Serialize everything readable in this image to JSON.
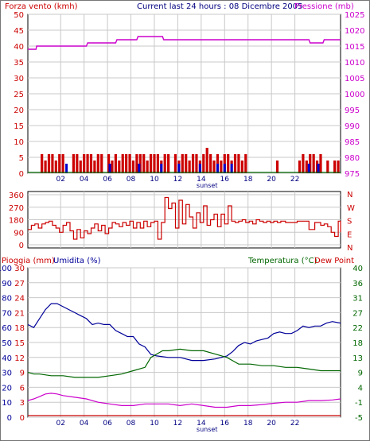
{
  "header": {
    "title": "Current last 24 hours : 08 Dicembre 2005"
  },
  "colors": {
    "background": "#ffffff",
    "wind": "#cc0000",
    "pressure": "#cc00cc",
    "gust_marks": "#0000cc",
    "humidity": "#000099",
    "temperature": "#006600",
    "dew_point": "#cc0000",
    "rain_baseline": "#cc0000",
    "grid": "#c8c8c8"
  },
  "chart_data": [
    {
      "type": "line",
      "panel": "wind-pressure",
      "title": "Current last 24 hours : 08 Dicembre 2005",
      "left_axis_label": "Forza vento (kmh)",
      "right_axis_label": "Pressione (mb)",
      "y_left_lim": [
        0,
        50
      ],
      "y_right_lim": [
        975,
        1025
      ],
      "y_left_ticks": [
        "0",
        "5",
        "10",
        "15",
        "20",
        "25",
        "30",
        "35",
        "40",
        "45",
        "50"
      ],
      "y_right_ticks": [
        "975",
        "980",
        "985",
        "990",
        "995",
        "1000",
        "1005",
        "1010",
        "1015",
        "1020",
        "1025"
      ],
      "x_ticks": [
        "02",
        "04",
        "06",
        "08",
        "10",
        "12",
        "14",
        "16",
        "18",
        "20",
        "22"
      ],
      "x_label": "sunset",
      "grid": true,
      "series": [
        {
          "axis": "right",
          "color": "#cc00cc",
          "x": [
            0,
            0.7,
            0.75,
            5.0,
            5.1,
            7.5,
            7.6,
            9.3,
            9.4,
            11.5,
            11.6,
            24.0,
            24.1,
            25.2,
            25.3,
            26.7
          ],
          "y": [
            1014,
            1014,
            1015,
            1015,
            1016,
            1016,
            1017,
            1017,
            1018,
            1018,
            1017,
            1017,
            1016,
            1016,
            1017,
            1017
          ]
        }
      ],
      "wind_bars": {
        "x": [
          1.2,
          1.5,
          1.8,
          2.1,
          2.4,
          2.7,
          3.0,
          3.9,
          4.2,
          4.5,
          4.8,
          5.1,
          5.4,
          5.7,
          6.0,
          6.3,
          6.9,
          7.2,
          7.5,
          7.8,
          8.1,
          8.4,
          8.7,
          9.0,
          9.3,
          9.6,
          9.9,
          10.2,
          10.5,
          10.8,
          11.1,
          11.4,
          11.7,
          12.0,
          12.6,
          12.9,
          13.2,
          13.5,
          13.8,
          14.1,
          14.4,
          14.7,
          15.0,
          15.3,
          15.6,
          15.9,
          16.2,
          16.5,
          16.8,
          17.1,
          17.4,
          17.7,
          18.0,
          18.3,
          18.6,
          21.3,
          23.2,
          23.5,
          23.8,
          24.1,
          24.4,
          24.7,
          25.0,
          25.6,
          26.2,
          26.5
        ],
        "y": [
          6,
          4,
          6,
          6,
          4,
          6,
          6,
          6,
          6,
          4,
          6,
          6,
          6,
          4,
          6,
          6,
          6,
          4,
          6,
          4,
          6,
          6,
          6,
          4,
          6,
          6,
          6,
          4,
          6,
          6,
          6,
          4,
          6,
          6,
          6,
          4,
          6,
          6,
          4,
          6,
          6,
          4,
          6,
          8,
          6,
          4,
          6,
          4,
          6,
          6,
          4,
          6,
          6,
          4,
          6,
          4,
          4,
          6,
          4,
          6,
          6,
          4,
          6,
          4,
          4,
          4
        ]
      },
      "gust_marks_x": [
        3.3,
        7.0,
        9.5,
        11.4,
        12.9,
        14.7,
        16.2,
        16.8,
        17.4,
        24.0,
        24.8
      ]
    },
    {
      "type": "line",
      "panel": "wind-direction",
      "y_left_ticks": [
        "0",
        "90",
        "180",
        "270",
        "360"
      ],
      "y_left_lim": [
        0,
        360
      ],
      "y_right_ticks": [
        "N",
        "E",
        "S",
        "W",
        "N"
      ],
      "grid": true,
      "series": [
        {
          "color": "#cc0000",
          "x": [
            0,
            0.3,
            0.6,
            0.9,
            1.2,
            1.5,
            1.8,
            2.1,
            2.4,
            2.7,
            3.0,
            3.3,
            3.6,
            3.9,
            4.2,
            4.5,
            4.8,
            5.1,
            5.4,
            5.7,
            6.0,
            6.3,
            6.6,
            6.9,
            7.2,
            7.5,
            7.8,
            8.1,
            8.4,
            8.7,
            9.0,
            9.3,
            9.6,
            9.9,
            10.2,
            10.5,
            10.8,
            11.1,
            11.4,
            11.7,
            12.0,
            12.3,
            12.6,
            12.9,
            13.2,
            13.5,
            13.8,
            14.1,
            14.4,
            14.7,
            15.0,
            15.3,
            15.6,
            15.9,
            16.2,
            16.5,
            16.8,
            17.1,
            17.4,
            17.7,
            18.0,
            18.3,
            18.6,
            18.9,
            19.2,
            19.5,
            19.8,
            20.1,
            20.4,
            20.7,
            21.0,
            21.3,
            21.6,
            22.0,
            23.0,
            24.0,
            24.5,
            25.0,
            25.3,
            25.6,
            25.9,
            26.2,
            26.5,
            26.7
          ],
          "y": [
            110,
            140,
            150,
            120,
            150,
            160,
            170,
            140,
            120,
            90,
            140,
            160,
            100,
            40,
            110,
            50,
            100,
            80,
            120,
            150,
            100,
            140,
            80,
            120,
            160,
            150,
            130,
            160,
            140,
            170,
            120,
            160,
            120,
            170,
            130,
            160,
            170,
            40,
            160,
            340,
            260,
            300,
            120,
            320,
            150,
            290,
            200,
            120,
            230,
            160,
            280,
            140,
            180,
            220,
            130,
            220,
            150,
            280,
            170,
            160,
            170,
            180,
            160,
            170,
            150,
            180,
            170,
            160,
            170,
            160,
            170,
            160,
            170,
            160,
            170,
            110,
            160,
            140,
            150,
            130,
            90,
            60,
            170,
            90
          ]
        }
      ]
    },
    {
      "type": "line",
      "panel": "rain-humidity-temperature",
      "left_axis_label_1": "Pioggia (mm)",
      "left_axis_label_2": "Umidita (%)",
      "right_axis_label_1": "Temperatura (°C)",
      "right_axis_label_2": "Dew Point",
      "y_humidity_ticks": [
        "0",
        "10",
        "20",
        "30",
        "40",
        "50",
        "60",
        "70",
        "80",
        "90",
        "100"
      ],
      "y_rain_ticks": [
        "0",
        "3",
        "6",
        "9",
        "12",
        "15",
        "18",
        "21",
        "24",
        "27",
        "30"
      ],
      "y_temp_ticks": [
        "-5",
        "-1",
        "4",
        "9",
        "13",
        "18",
        "22",
        "27",
        "31",
        "36",
        "40"
      ],
      "y_temp_lim": [
        -5,
        40
      ],
      "y_humidity_lim": [
        0,
        100
      ],
      "x_ticks": [
        "02",
        "04",
        "06",
        "08",
        "10",
        "12",
        "14",
        "16",
        "18",
        "20",
        "22"
      ],
      "x_label": "sunset",
      "grid": true,
      "series": [
        {
          "name": "Umidita (%)",
          "axis": "humidity",
          "color": "#000099",
          "x": [
            0,
            0.5,
            1.0,
            1.5,
            2.0,
            2.5,
            3.0,
            3.5,
            4.0,
            4.5,
            5.0,
            5.5,
            6.0,
            6.5,
            7.0,
            7.5,
            8.0,
            8.5,
            9.0,
            9.5,
            10.0,
            10.5,
            11.0,
            12.0,
            13.0,
            14.0,
            15.0,
            16.0,
            16.5,
            17.0,
            17.5,
            18.0,
            18.5,
            19.0,
            19.5,
            20.0,
            20.5,
            21.0,
            21.5,
            22.0,
            22.5,
            23.0,
            23.5,
            24.0,
            24.5,
            25.0,
            25.5,
            26.0,
            26.7
          ],
          "y": [
            62,
            60,
            66,
            72,
            76,
            76,
            74,
            72,
            70,
            68,
            66,
            62,
            63,
            62,
            62,
            58,
            56,
            54,
            54,
            49,
            47,
            42,
            41,
            40,
            40,
            38,
            38,
            39,
            40,
            41,
            44,
            48,
            50,
            49,
            51,
            52,
            53,
            56,
            57,
            56,
            56,
            58,
            61,
            60,
            61,
            61,
            63,
            64,
            63
          ]
        },
        {
          "name": "Temperatura (°C)",
          "axis": "temp",
          "color": "#006600",
          "x": [
            0,
            0.5,
            1.0,
            2.0,
            3.0,
            4.0,
            5.0,
            6.0,
            7.0,
            8.0,
            9.0,
            10.0,
            10.5,
            11.0,
            11.5,
            12.0,
            13.0,
            14.0,
            15.0,
            16.0,
            17.0,
            17.5,
            18.0,
            19.0,
            20.0,
            21.0,
            22.0,
            23.0,
            24.0,
            25.0,
            26.0,
            26.7
          ],
          "y": [
            8.5,
            8,
            8,
            7.5,
            7.5,
            7,
            7,
            7,
            7.5,
            8,
            9,
            10,
            13,
            14,
            15,
            15,
            15.5,
            15,
            15,
            14,
            13,
            12,
            11,
            11,
            10.5,
            10.5,
            10,
            10,
            9.5,
            9,
            9,
            9
          ]
        },
        {
          "name": "Dew Point",
          "axis": "temp",
          "color": "#cc00cc",
          "x": [
            0,
            0.5,
            1.0,
            1.5,
            2.0,
            2.5,
            3.0,
            4.0,
            5.0,
            6.0,
            7.0,
            8.0,
            9.0,
            10.0,
            11.0,
            12.0,
            13.0,
            14.0,
            15.0,
            16.0,
            17.0,
            18.0,
            19.0,
            20.0,
            21.0,
            22.0,
            23.0,
            24.0,
            25.0,
            26.0,
            26.7
          ],
          "y": [
            0,
            0.5,
            1.2,
            2,
            2.2,
            2,
            1.5,
            1,
            0.5,
            -0.5,
            -1,
            -1.5,
            -1.5,
            -1,
            -1,
            -1,
            -1.5,
            -1,
            -1.5,
            -2,
            -2,
            -1.5,
            -1.5,
            -1.2,
            -0.8,
            -0.5,
            -0.5,
            0,
            0,
            0.2,
            0.5
          ]
        },
        {
          "name": "Pioggia (mm)",
          "axis": "rain",
          "color": "#cc0000",
          "x": [
            0,
            26.7
          ],
          "y": [
            0,
            0
          ]
        }
      ]
    }
  ]
}
